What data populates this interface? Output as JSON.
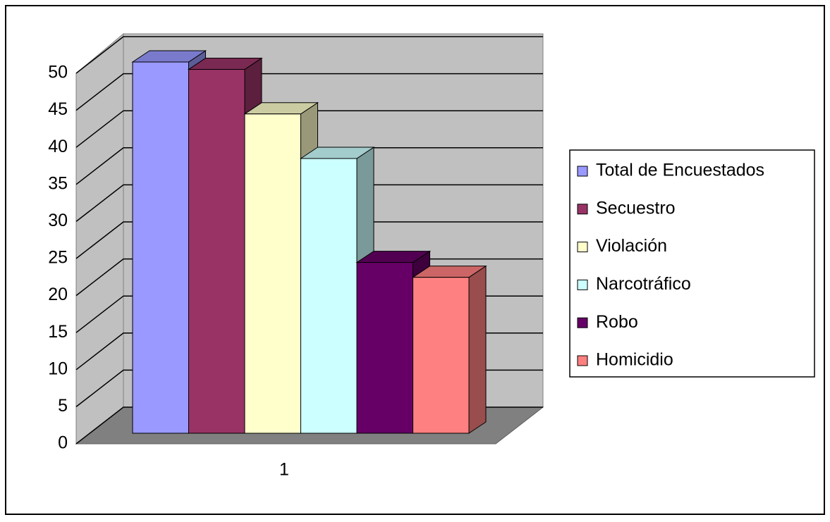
{
  "chart_data": {
    "type": "bar3d",
    "categories": [
      "1"
    ],
    "series": [
      {
        "name": "Total de Encuestados",
        "color": "#9999ff",
        "values": [
          50
        ]
      },
      {
        "name": "Secuestro",
        "color": "#993366",
        "values": [
          49
        ]
      },
      {
        "name": "Violación",
        "color": "#ffffcc",
        "values": [
          43
        ]
      },
      {
        "name": "Narcotráfico",
        "color": "#ccffff",
        "values": [
          37
        ]
      },
      {
        "name": "Robo",
        "color": "#660066",
        "values": [
          23
        ]
      },
      {
        "name": "Homicidio",
        "color": "#ff8080",
        "values": [
          21
        ]
      }
    ],
    "ylim": [
      0,
      50
    ],
    "yticks": [
      0,
      5,
      10,
      15,
      20,
      25,
      30,
      35,
      40,
      45,
      50
    ],
    "grid": true,
    "legend": "right"
  }
}
